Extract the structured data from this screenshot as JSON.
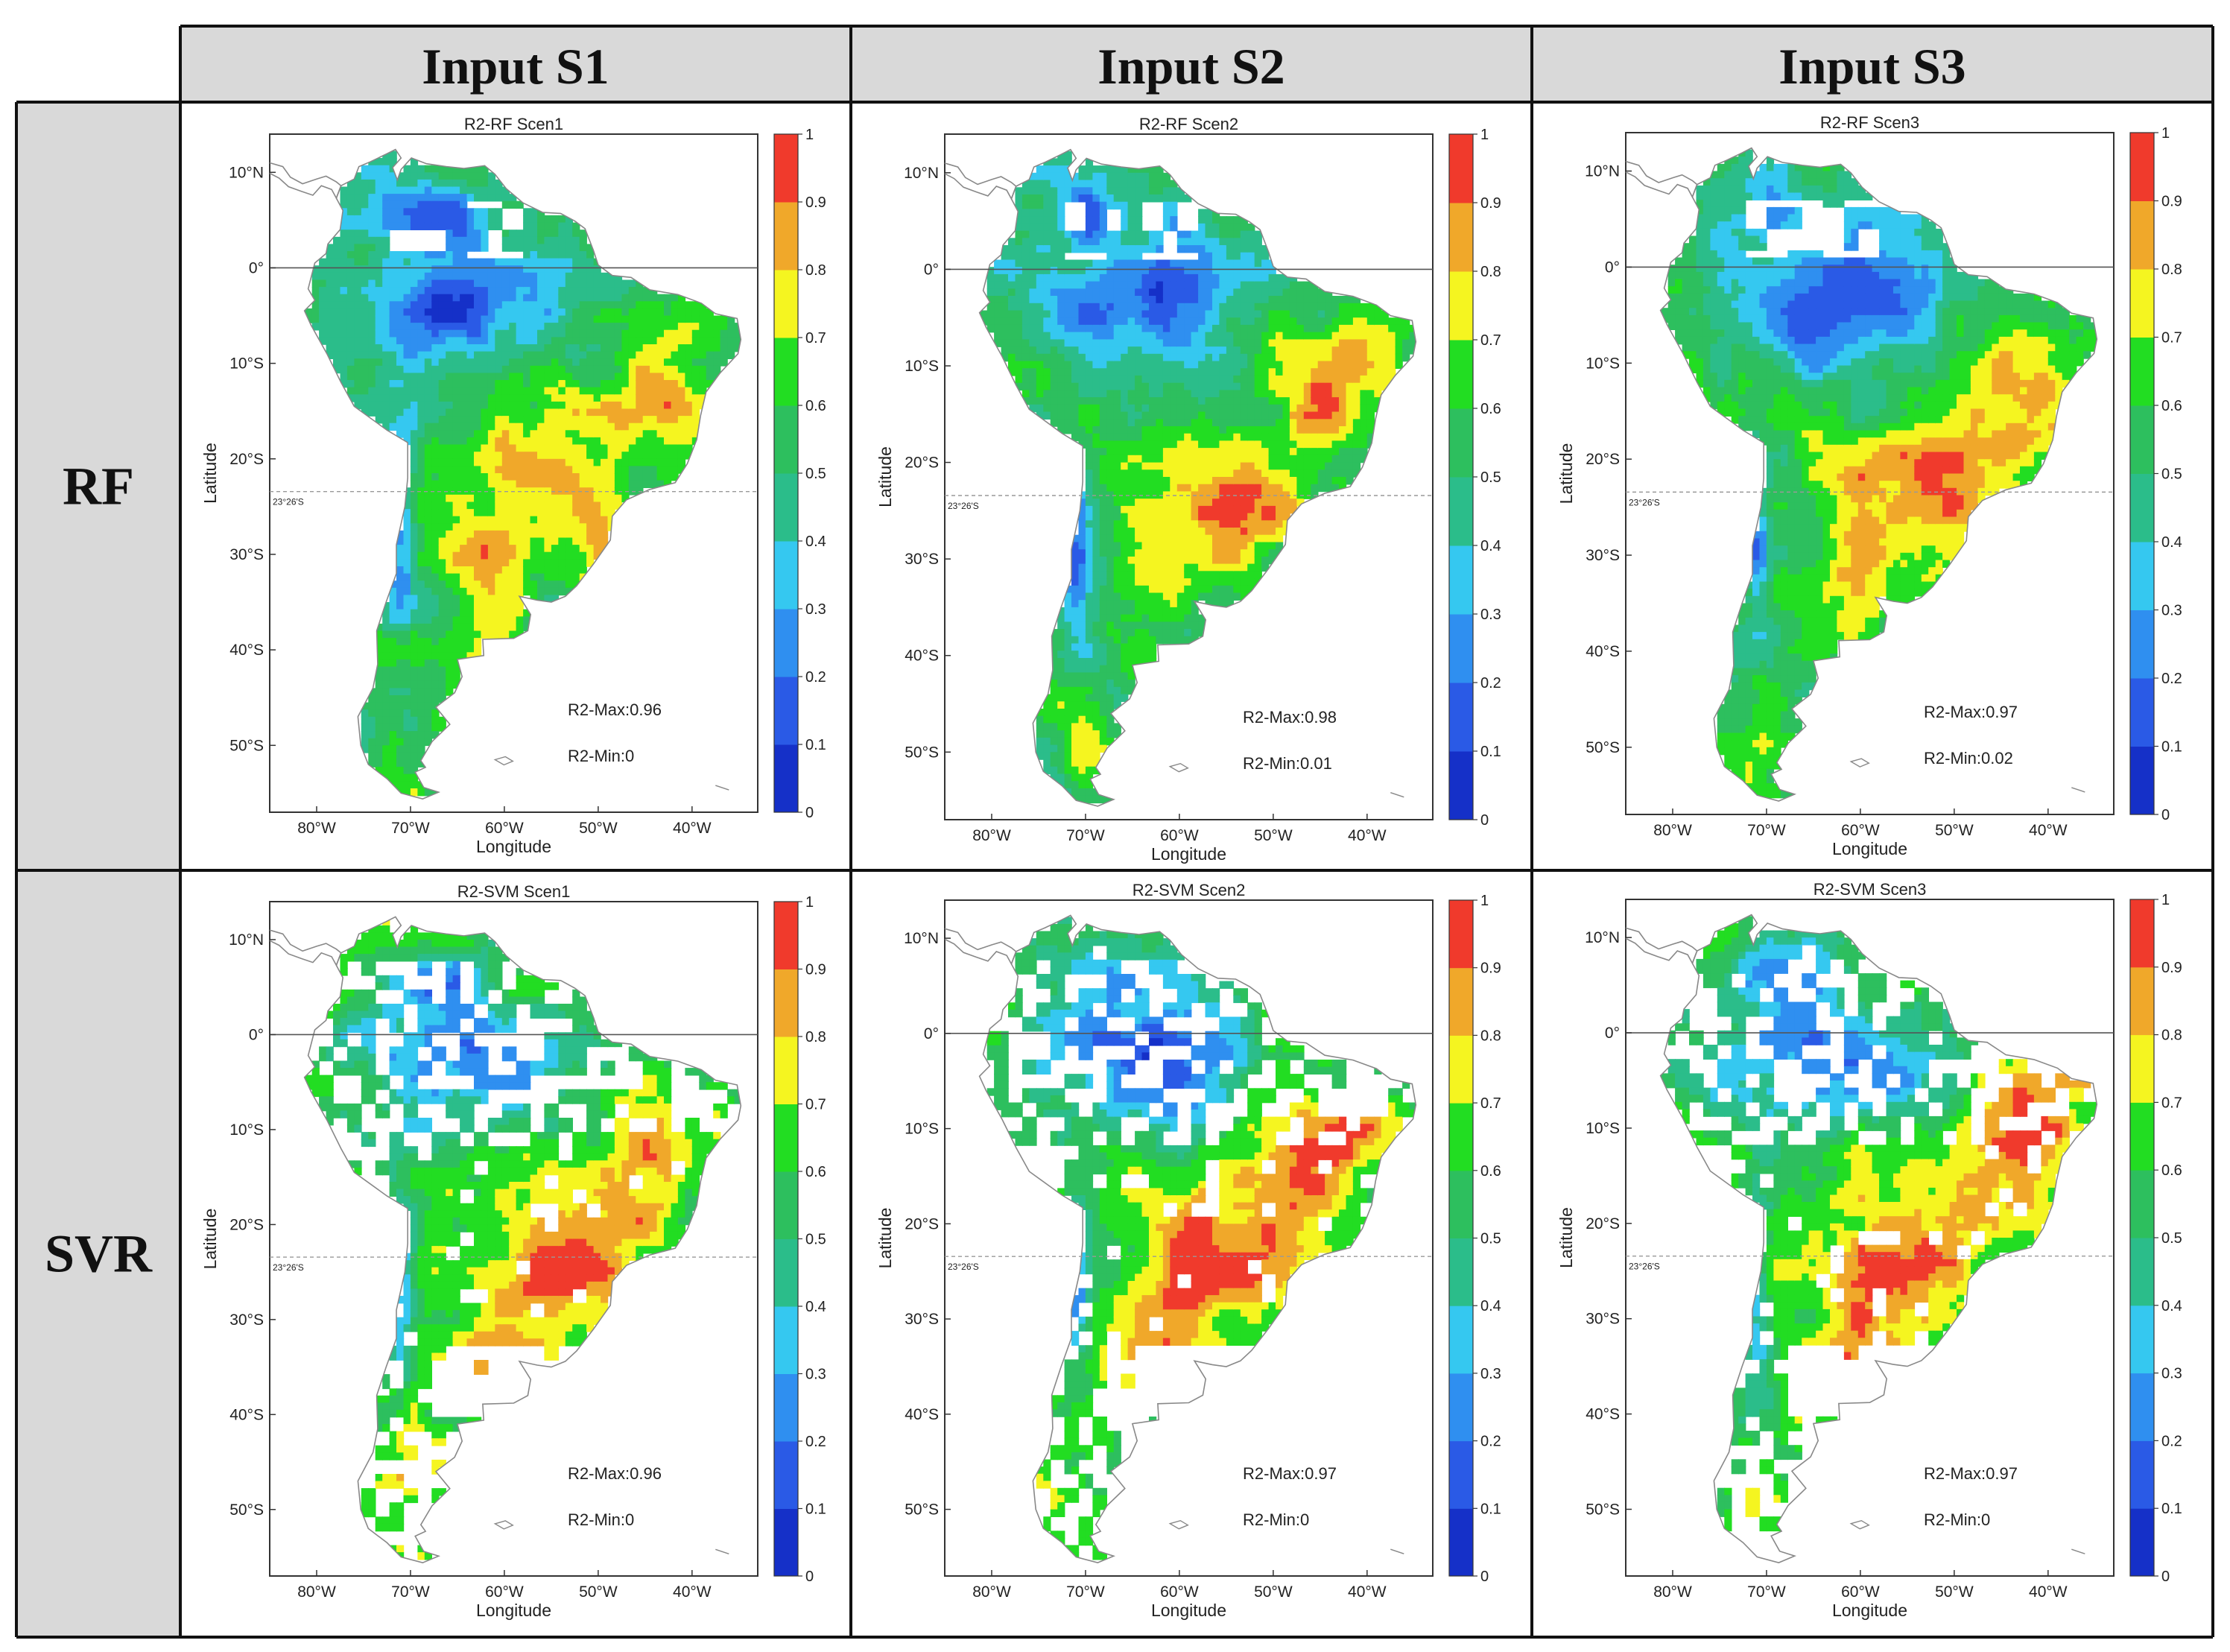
{
  "columns": [
    "Input S1",
    "Input S2",
    "Input S3"
  ],
  "rows": [
    "RF",
    "SVR"
  ],
  "axes": {
    "xlabel": "Longitude",
    "ylabel": "Latitude",
    "lon_ticks": [
      "80°W",
      "70°W",
      "60°W",
      "50°W",
      "40°W"
    ],
    "lat_ticks": [
      "10°N",
      "0°",
      "10°S",
      "20°S",
      "30°S",
      "40°S",
      "50°S"
    ],
    "tropic_label": "23°26'S"
  },
  "colorbar": {
    "ticks": [
      "0",
      "0.1",
      "0.2",
      "0.3",
      "0.4",
      "0.5",
      "0.6",
      "0.7",
      "0.8",
      "0.9",
      "1"
    ],
    "colors": [
      "#1530c8",
      "#2a5ae6",
      "#2f8ff0",
      "#35c8f0",
      "#2bbd8a",
      "#2dbf5e",
      "#22dd22",
      "#f5f520",
      "#f0a82a",
      "#f03a2c"
    ]
  },
  "panels": [
    {
      "title": "R2-RF Scen1",
      "max_label": "R2-Max:0.96",
      "min_label": "R2-Min:0"
    },
    {
      "title": "R2-RF Scen2",
      "max_label": "R2-Max:0.98",
      "min_label": "R2-Min:0.01"
    },
    {
      "title": "R2-RF Scen3",
      "max_label": "R2-Max:0.97",
      "min_label": "R2-Min:0.02"
    },
    {
      "title": "R2-SVM Scen1",
      "max_label": "R2-Max:0.96",
      "min_label": "R2-Min:0"
    },
    {
      "title": "R2-SVM Scen2",
      "max_label": "R2-Max:0.97",
      "min_label": "R2-Min:0"
    },
    {
      "title": "R2-SVM Scen3",
      "max_label": "R2-Max:0.97",
      "min_label": "R2-Min:0"
    }
  ],
  "chart_data": {
    "type": "heatmap",
    "description_of_variable": "R2",
    "series": [
      {
        "name": "R2-RF Scen1",
        "max": 0.96,
        "min": 0
      },
      {
        "name": "R2-RF Scen2",
        "max": 0.98,
        "min": 0.01
      },
      {
        "name": "R2-RF Scen3",
        "max": 0.97,
        "min": 0.02
      },
      {
        "name": "R2-SVM Scen1",
        "max": 0.96,
        "min": 0
      },
      {
        "name": "R2-SVM Scen2",
        "max": 0.97,
        "min": 0
      },
      {
        "name": "R2-SVM Scen3",
        "max": 0.97,
        "min": 0
      }
    ],
    "xlabel": "Longitude",
    "ylabel": "Latitude",
    "xlim": [
      -85,
      -33
    ],
    "ylim": [
      -57,
      14
    ],
    "clim": [
      0,
      1
    ]
  }
}
